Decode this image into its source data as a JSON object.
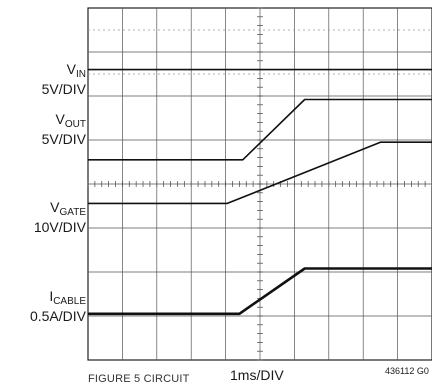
{
  "chart_data": {
    "type": "line",
    "title": "",
    "x_label": "1ms/DIV",
    "x_divisions": 10,
    "y_divisions": 8,
    "grid": true,
    "figure_code": "436112 G0",
    "caption_partial": "FIGURE 5 CIRCUIT",
    "series": [
      {
        "name": "VIN",
        "name_main": "V",
        "name_sub": "IN",
        "scale": "5V/DIV",
        "points": [
          [
            0,
            6.6
          ],
          [
            10,
            6.6
          ]
        ]
      },
      {
        "name": "VOUT",
        "name_main": "V",
        "name_sub": "OUT",
        "scale": "5V/DIV",
        "points": [
          [
            0,
            4.55
          ],
          [
            4.5,
            4.55
          ],
          [
            6.3,
            5.92
          ],
          [
            10,
            5.92
          ]
        ]
      },
      {
        "name": "VGATE",
        "name_main": "V",
        "name_sub": "GATE",
        "scale": "10V/DIV",
        "points": [
          [
            0,
            3.56
          ],
          [
            4.05,
            3.56
          ],
          [
            8.5,
            4.95
          ],
          [
            10,
            4.95
          ]
        ]
      },
      {
        "name": "ICABLE",
        "name_main": "I",
        "name_sub": "CABLE",
        "scale": "0.5A/DIV",
        "points": [
          [
            0,
            1.05
          ],
          [
            4.4,
            1.05
          ],
          [
            6.3,
            2.08
          ],
          [
            10,
            2.08
          ]
        ]
      }
    ]
  }
}
